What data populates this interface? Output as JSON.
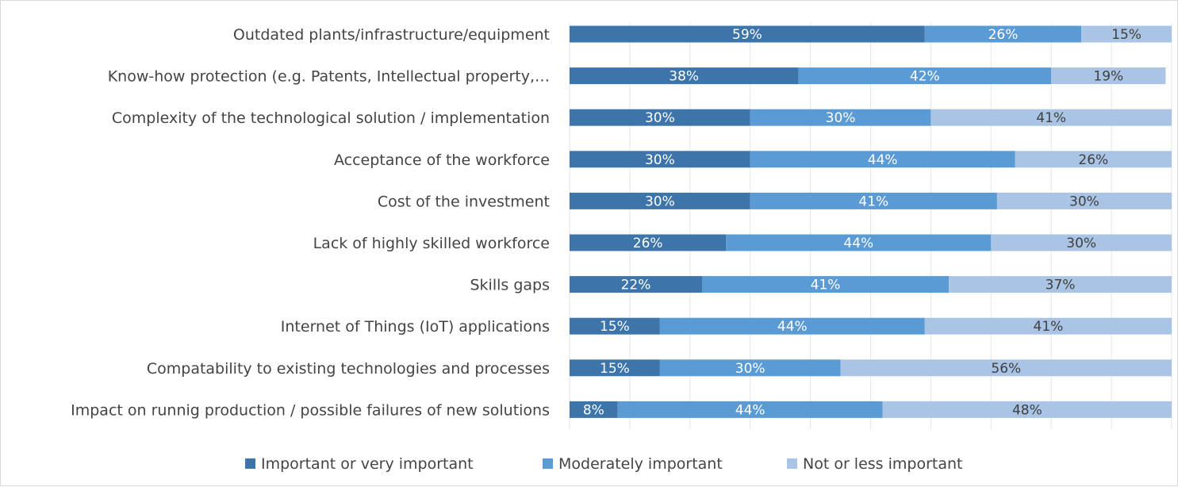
{
  "chart_data": {
    "type": "bar",
    "orientation": "horizontal",
    "stacked": "100%",
    "categories": [
      "Outdated plants/infrastructure/equipment",
      "Know-how protection (e.g. Patents, Intellectual property,…",
      "Complexity of the technological solution / implementation",
      "Acceptance of the workforce",
      "Cost of the investment",
      "Lack of highly skilled workforce",
      "Skills gaps",
      "Internet of Things (IoT) applications",
      "Compatability to existing technologies and processes",
      "Impact on runnig production / possible failures of new solutions"
    ],
    "series": [
      {
        "name": "Important or very important",
        "color": "#3d74aa",
        "values": [
          59,
          38,
          30,
          30,
          30,
          26,
          22,
          15,
          15,
          8
        ],
        "labels": [
          "59%",
          "38%",
          "30%",
          "30%",
          "30%",
          "26%",
          "22%",
          "15%",
          "15%",
          "8%"
        ]
      },
      {
        "name": "Moderately important",
        "color": "#5b9bd5",
        "values": [
          26,
          42,
          30,
          44,
          41,
          44,
          41,
          44,
          30,
          44
        ],
        "labels": [
          "26%",
          "42%",
          "30%",
          "44%",
          "41%",
          "44%",
          "41%",
          "44%",
          "30%",
          "44%"
        ]
      },
      {
        "name": "Not or less important",
        "color": "#a9c4e4",
        "values": [
          15,
          19,
          41,
          26,
          30,
          30,
          37,
          41,
          56,
          48
        ],
        "labels": [
          "15%",
          "19%",
          "41%",
          "26%",
          "30%",
          "30%",
          "37%",
          "41%",
          "56%",
          "48%"
        ]
      }
    ],
    "xlim": [
      0,
      100
    ],
    "grid": true,
    "legend": "bottom",
    "title": "",
    "xlabel": "",
    "ylabel": ""
  }
}
